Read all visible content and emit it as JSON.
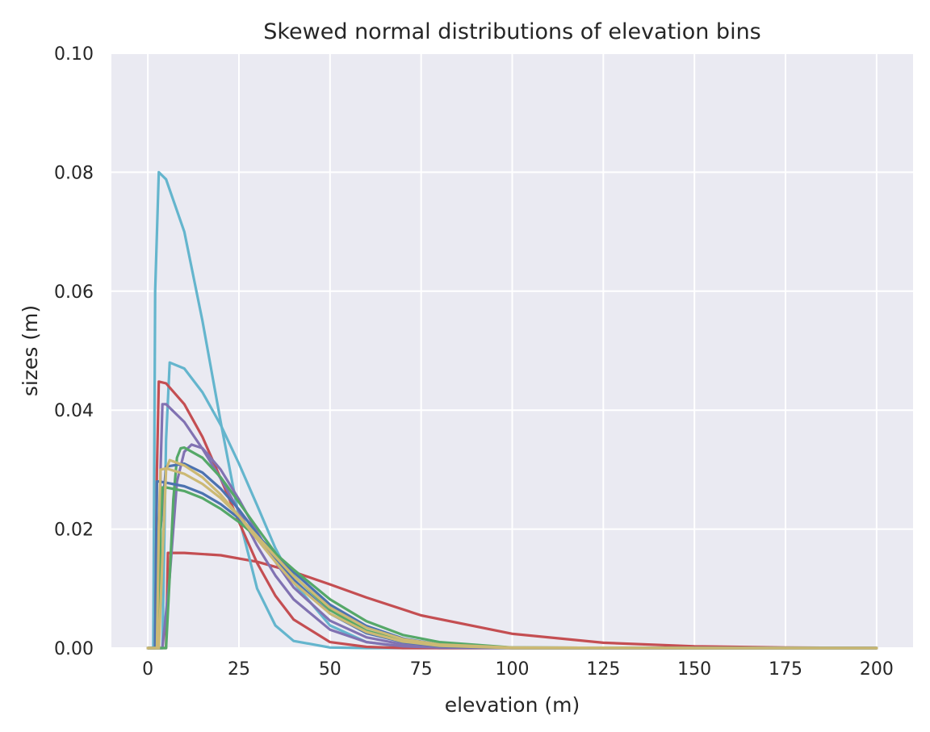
{
  "chart_data": {
    "type": "line",
    "title": "Skewed normal distributions of elevation bins",
    "xlabel": "elevation (m)",
    "ylabel": "sizes (m)",
    "xlim": [
      -10,
      210
    ],
    "ylim": [
      0,
      0.1
    ],
    "xticks": [
      0,
      25,
      50,
      75,
      100,
      125,
      150,
      175,
      200
    ],
    "xtick_labels": [
      "0",
      "25",
      "50",
      "75",
      "100",
      "125",
      "150",
      "175",
      "200"
    ],
    "yticks": [
      0,
      0.02,
      0.04,
      0.06,
      0.08,
      0.1
    ],
    "ytick_labels": [
      "0.00",
      "0.02",
      "0.04",
      "0.06",
      "0.08",
      "0.10"
    ],
    "grid": true,
    "style": "seaborn-darkgrid",
    "colors": {
      "plot_background": "#eaeaf2",
      "grid": "#ffffff",
      "text": "#262626"
    },
    "series": [
      {
        "color": "#c44e52",
        "x": [
          0,
          5,
          5.5,
          10,
          20,
          30,
          40,
          50,
          60,
          75,
          100,
          125,
          150,
          175,
          200
        ],
        "y": [
          0,
          0,
          0.016,
          0.016,
          0.0156,
          0.0145,
          0.0128,
          0.0107,
          0.0085,
          0.0055,
          0.0024,
          0.0009,
          0.0003,
          0.0001,
          0.0
        ]
      },
      {
        "color": "#64b5cd",
        "x": [
          0,
          1.5,
          2,
          3,
          5,
          10,
          15,
          20,
          25,
          30,
          35,
          40,
          50,
          60,
          80,
          100,
          150,
          200
        ],
        "y": [
          0,
          0,
          0.06,
          0.08,
          0.0788,
          0.07,
          0.055,
          0.038,
          0.022,
          0.01,
          0.0038,
          0.0012,
          0.0001,
          0,
          0,
          0,
          0,
          0
        ]
      },
      {
        "color": "#64b5cd",
        "x": [
          0,
          4,
          5,
          6,
          10,
          15,
          20,
          25,
          30,
          35,
          40,
          50,
          60,
          70,
          80,
          100,
          150,
          200
        ],
        "y": [
          0,
          0,
          0.035,
          0.048,
          0.047,
          0.043,
          0.0375,
          0.031,
          0.024,
          0.0168,
          0.011,
          0.0038,
          0.001,
          0.0002,
          0,
          0,
          0,
          0
        ]
      },
      {
        "color": "#c44e52",
        "x": [
          0,
          2,
          2.5,
          3,
          5,
          10,
          15,
          20,
          25,
          30,
          35,
          40,
          50,
          60,
          70,
          100,
          150,
          200
        ],
        "y": [
          0,
          0,
          0.03,
          0.0448,
          0.0445,
          0.041,
          0.0355,
          0.0285,
          0.0212,
          0.0143,
          0.0088,
          0.0048,
          0.001,
          0.0002,
          0,
          0,
          0,
          0
        ]
      },
      {
        "color": "#8172b2",
        "x": [
          0,
          3,
          3.5,
          4,
          5,
          10,
          15,
          20,
          25,
          30,
          35,
          40,
          50,
          60,
          70,
          80,
          100,
          150,
          200
        ],
        "y": [
          0,
          0,
          0.03,
          0.041,
          0.041,
          0.038,
          0.0335,
          0.0285,
          0.023,
          0.0172,
          0.0122,
          0.0082,
          0.0031,
          0.001,
          0.0003,
          0.0001,
          0,
          0,
          0
        ]
      },
      {
        "color": "#8172b2",
        "x": [
          0,
          4,
          6,
          8,
          10,
          12,
          15,
          20,
          25,
          30,
          35,
          40,
          50,
          60,
          70,
          80,
          100,
          150,
          200
        ],
        "y": [
          0,
          0,
          0.012,
          0.028,
          0.033,
          0.0342,
          0.0336,
          0.03,
          0.025,
          0.0195,
          0.0145,
          0.0102,
          0.0046,
          0.0018,
          0.0006,
          0.0002,
          0,
          0,
          0
        ]
      },
      {
        "color": "#55a868",
        "x": [
          0,
          5,
          6,
          7,
          8,
          9,
          10,
          15,
          20,
          25,
          30,
          35,
          40,
          50,
          60,
          70,
          80,
          100,
          150,
          200
        ],
        "y": [
          0,
          0,
          0.012,
          0.025,
          0.032,
          0.0336,
          0.0337,
          0.032,
          0.0287,
          0.0245,
          0.0202,
          0.016,
          0.0122,
          0.0064,
          0.0029,
          0.0012,
          0.0004,
          0,
          0,
          0
        ]
      },
      {
        "color": "#4c72b0",
        "x": [
          0,
          2.5,
          3,
          3.5,
          5,
          10,
          15,
          20,
          25,
          30,
          35,
          40,
          50,
          60,
          70,
          80,
          100,
          150,
          200
        ],
        "y": [
          0,
          0,
          0.015,
          0.02,
          0.0305,
          0.031,
          0.0295,
          0.0268,
          0.0233,
          0.0192,
          0.0152,
          0.0115,
          0.0058,
          0.0025,
          0.001,
          0.0003,
          0,
          0,
          0
        ]
      },
      {
        "color": "#4c72b0",
        "x": [
          0,
          2,
          2.5,
          3,
          5,
          10,
          15,
          20,
          25,
          30,
          35,
          40,
          50,
          60,
          70,
          80,
          100,
          150,
          200
        ],
        "y": [
          0,
          0,
          0.028,
          0.028,
          0.0278,
          0.0272,
          0.026,
          0.0242,
          0.0218,
          0.019,
          0.0158,
          0.0128,
          0.0073,
          0.0037,
          0.0016,
          0.0006,
          0.0001,
          0,
          0
        ]
      },
      {
        "color": "#55a868",
        "x": [
          0,
          3,
          3.5,
          4,
          5,
          10,
          15,
          20,
          25,
          30,
          35,
          40,
          50,
          60,
          70,
          80,
          100,
          150,
          200
        ],
        "y": [
          0,
          0,
          0.02,
          0.027,
          0.027,
          0.0264,
          0.0252,
          0.0234,
          0.0212,
          0.0186,
          0.0159,
          0.0132,
          0.0082,
          0.0045,
          0.0022,
          0.001,
          0.0001,
          0,
          0
        ]
      },
      {
        "color": "#ccb974",
        "x": [
          0,
          3,
          4,
          5,
          6,
          10,
          15,
          20,
          25,
          30,
          35,
          40,
          50,
          60,
          70,
          80,
          100,
          150,
          200
        ],
        "y": [
          0,
          0,
          0.015,
          0.03,
          0.0316,
          0.0307,
          0.0287,
          0.0258,
          0.0222,
          0.0183,
          0.0145,
          0.011,
          0.0058,
          0.0027,
          0.0011,
          0.0004,
          0,
          0,
          0
        ]
      },
      {
        "color": "#ccb974",
        "x": [
          0,
          2.5,
          3,
          3.5,
          5,
          10,
          15,
          20,
          25,
          30,
          35,
          40,
          50,
          60,
          70,
          80,
          100,
          150,
          200
        ],
        "y": [
          0,
          0,
          0.02,
          0.03,
          0.0302,
          0.0293,
          0.0276,
          0.0252,
          0.0222,
          0.0188,
          0.0154,
          0.0121,
          0.0068,
          0.0034,
          0.0015,
          0.0006,
          0.0001,
          0,
          0
        ]
      }
    ]
  }
}
